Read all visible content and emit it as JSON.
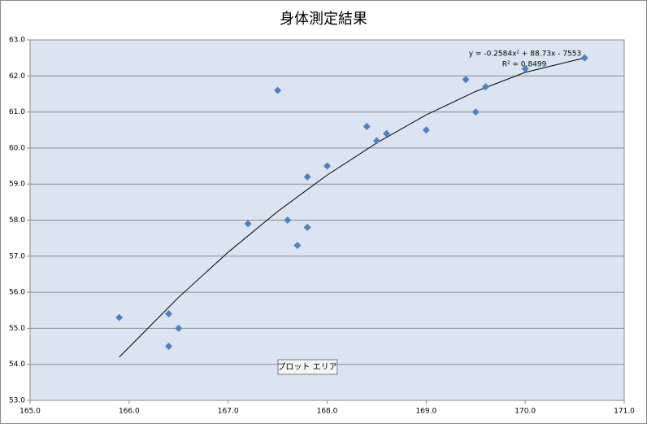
{
  "chart_data": {
    "type": "scatter",
    "title": "身体測定結果",
    "x": [
      165.9,
      166.4,
      166.5,
      166.4,
      167.2,
      167.5,
      167.6,
      167.7,
      167.8,
      167.8,
      168.0,
      168.4,
      168.5,
      168.6,
      169.0,
      169.4,
      169.5,
      169.6,
      170.0,
      170.6
    ],
    "values": [
      55.3,
      55.4,
      55.0,
      54.5,
      57.9,
      61.6,
      58.0,
      57.3,
      57.8,
      59.2,
      59.5,
      60.6,
      60.2,
      60.4,
      60.5,
      61.9,
      61.0,
      61.7,
      62.2,
      62.5
    ],
    "color": "#4f81bd",
    "trendline": {
      "x": [
        165.9,
        166.5,
        167.0,
        167.5,
        168.0,
        168.5,
        169.0,
        169.5,
        170.0,
        170.6
      ],
      "y": [
        54.2,
        55.86,
        57.11,
        58.24,
        59.25,
        60.14,
        60.92,
        61.57,
        62.1,
        62.5
      ],
      "color": "#000000"
    },
    "annotations": [
      "y = -0.2584x² + 88.73x - 7553",
      "R² = 0.8499"
    ],
    "tooltip": "プロット エリア",
    "xlim": [
      165,
      171
    ],
    "xticks": [
      {
        "value": 165,
        "label": "165.0"
      },
      {
        "value": 166,
        "label": "166.0"
      },
      {
        "value": 167,
        "label": "167.0"
      },
      {
        "value": 168,
        "label": "168.0"
      },
      {
        "value": 169,
        "label": "169.0"
      },
      {
        "value": 170,
        "label": "170.0"
      },
      {
        "value": 171,
        "label": "171.0"
      }
    ],
    "ylim": [
      53,
      63
    ],
    "yticks": [
      {
        "value": 53,
        "label": "53.0"
      },
      {
        "value": 54,
        "label": "54.0"
      },
      {
        "value": 55,
        "label": "55.0"
      },
      {
        "value": 56,
        "label": "56.0"
      },
      {
        "value": 57,
        "label": "57.0"
      },
      {
        "value": 58,
        "label": "58.0"
      },
      {
        "value": 59,
        "label": "59.0"
      },
      {
        "value": 60,
        "label": "60.0"
      },
      {
        "value": 61,
        "label": "61.0"
      },
      {
        "value": 62,
        "label": "62.0"
      },
      {
        "value": 63,
        "label": "63.0"
      }
    ],
    "grid": true
  }
}
